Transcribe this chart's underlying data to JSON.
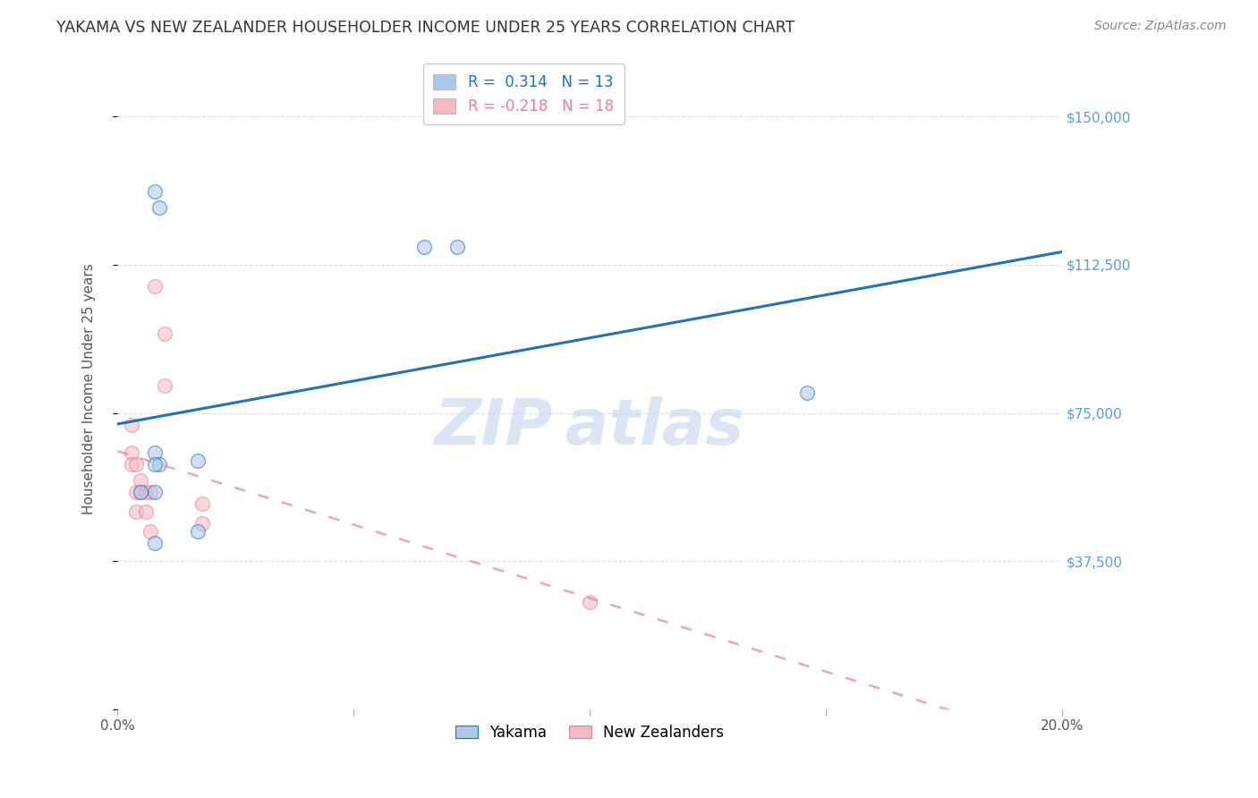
{
  "title": "YAKAMA VS NEW ZEALANDER HOUSEHOLDER INCOME UNDER 25 YEARS CORRELATION CHART",
  "source": "Source: ZipAtlas.com",
  "xlabel": "",
  "ylabel": "Householder Income Under 25 years",
  "xlim": [
    0.0,
    0.2
  ],
  "ylim": [
    0,
    162000
  ],
  "yticks": [
    0,
    37500,
    75000,
    112500,
    150000
  ],
  "ytick_labels": [
    "",
    "$37,500",
    "$75,000",
    "$112,500",
    "$150,000"
  ],
  "xticks": [
    0.0,
    0.05,
    0.1,
    0.15,
    0.2
  ],
  "xtick_labels": [
    "0.0%",
    "",
    "",
    "",
    "20.0%"
  ],
  "legend_entries": [
    {
      "label": "R =  0.314   N = 13",
      "color": "#aec6e8"
    },
    {
      "label": "R = -0.218   N = 18",
      "color": "#f4b8c1"
    }
  ],
  "yakama_x": [
    0.008,
    0.009,
    0.008,
    0.009,
    0.017,
    0.017,
    0.008,
    0.008,
    0.005,
    0.008,
    0.065,
    0.072,
    0.146
  ],
  "yakama_y": [
    131000,
    127000,
    65000,
    62000,
    63000,
    45000,
    62000,
    55000,
    55000,
    42000,
    117000,
    117000,
    80000
  ],
  "nz_x": [
    0.003,
    0.003,
    0.003,
    0.004,
    0.004,
    0.004,
    0.005,
    0.005,
    0.006,
    0.006,
    0.007,
    0.007,
    0.008,
    0.01,
    0.01,
    0.018,
    0.018,
    0.1
  ],
  "nz_y": [
    72000,
    65000,
    62000,
    62000,
    55000,
    50000,
    58000,
    55000,
    55000,
    50000,
    55000,
    45000,
    107000,
    95000,
    82000,
    52000,
    47000,
    27000
  ],
  "yakama_color": "#aec6e8",
  "nz_color": "#f4b8c1",
  "yakama_line_color": "#2171b5",
  "nz_line_color": "#e87d9a",
  "background_color": "#ffffff",
  "grid_color": "#dddddd",
  "title_color": "#333333",
  "axis_label_color": "#555555",
  "tick_color_right": "#5b9bd5",
  "scatter_size": 130,
  "scatter_alpha": 0.55,
  "scatter_linewidth": 1.0
}
